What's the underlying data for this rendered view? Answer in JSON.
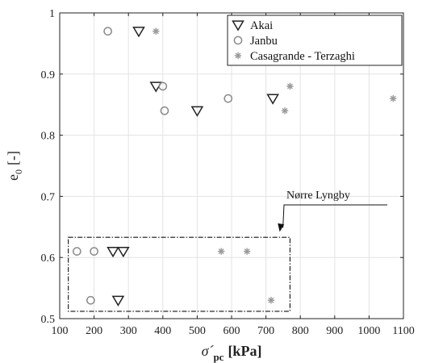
{
  "chart_data": {
    "type": "scatter",
    "xlabel_symbol": "σ´",
    "xlabel_sub": "pc",
    "xlabel_unit": "[kPa]",
    "ylabel_symbol": "e",
    "ylabel_sub": "0",
    "ylabel_unit": "[-]",
    "xlim": [
      100,
      1100
    ],
    "ylim": [
      0.5,
      1.0
    ],
    "xticks": [
      100,
      200,
      300,
      400,
      500,
      600,
      700,
      800,
      900,
      1000,
      1100
    ],
    "yticks": [
      0.5,
      0.6,
      0.7,
      0.8,
      0.9,
      1.0
    ],
    "ytick_labels": [
      "0.5",
      "0.6",
      "0.7",
      "0.8",
      "0.9",
      "1"
    ],
    "grid": true,
    "legend_position": "top-right",
    "series": [
      {
        "name": "Akai",
        "marker": "triangle-down",
        "color": "#222222",
        "points": [
          {
            "x": 330,
            "y": 0.97
          },
          {
            "x": 380,
            "y": 0.88
          },
          {
            "x": 500,
            "y": 0.84
          },
          {
            "x": 720,
            "y": 0.86
          },
          {
            "x": 255,
            "y": 0.61
          },
          {
            "x": 285,
            "y": 0.61
          },
          {
            "x": 270,
            "y": 0.53
          }
        ]
      },
      {
        "name": "Janbu",
        "marker": "circle",
        "color": "#8a8a8a",
        "points": [
          {
            "x": 240,
            "y": 0.97
          },
          {
            "x": 400,
            "y": 0.88
          },
          {
            "x": 405,
            "y": 0.84
          },
          {
            "x": 590,
            "y": 0.86
          },
          {
            "x": 150,
            "y": 0.61
          },
          {
            "x": 200,
            "y": 0.61
          },
          {
            "x": 190,
            "y": 0.53
          }
        ]
      },
      {
        "name": "Casagrande - Terzaghi",
        "marker": "asterisk",
        "color": "#9a9a9a",
        "points": [
          {
            "x": 380,
            "y": 0.97
          },
          {
            "x": 770,
            "y": 0.88
          },
          {
            "x": 755,
            "y": 0.84
          },
          {
            "x": 1070,
            "y": 0.86
          },
          {
            "x": 570,
            "y": 0.61
          },
          {
            "x": 645,
            "y": 0.61
          },
          {
            "x": 715,
            "y": 0.53
          }
        ]
      }
    ],
    "annotation": {
      "text": "Nørre Lyngby",
      "box_x": [
        125,
        770
      ],
      "box_y": [
        0.512,
        0.633
      ],
      "arrow_tip": {
        "x": 740,
        "y": 0.642
      }
    }
  }
}
